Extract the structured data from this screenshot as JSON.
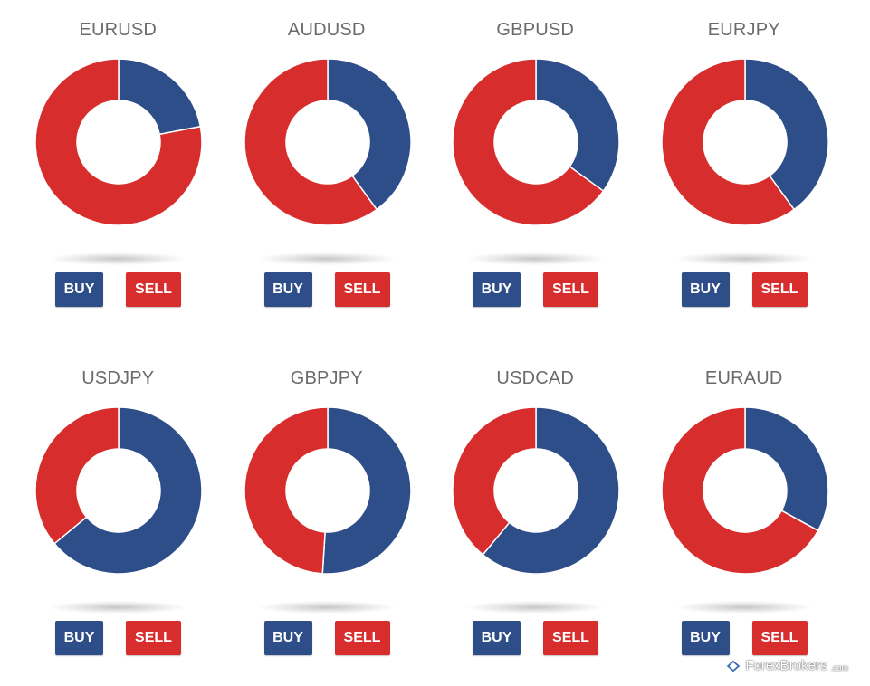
{
  "colors": {
    "buy": "#2e4e8a",
    "sell": "#d72d2d"
  },
  "buttons": {
    "buy": "BUY",
    "sell": "SELL"
  },
  "brand": {
    "name": "ForexBrokers",
    "suffix": ".com"
  },
  "chart_data": [
    {
      "type": "pie",
      "title": "EURUSD",
      "series": [
        {
          "values": [
            22,
            78
          ]
        }
      ]
    },
    {
      "type": "pie",
      "title": "AUDUSD",
      "series": [
        {
          "values": [
            40,
            60
          ]
        }
      ]
    },
    {
      "type": "pie",
      "title": "GBPUSD",
      "series": [
        {
          "values": [
            35,
            65
          ]
        }
      ]
    },
    {
      "type": "pie",
      "title": "EURJPY",
      "series": [
        {
          "values": [
            40,
            60
          ]
        }
      ]
    },
    {
      "type": "pie",
      "title": "USDJPY",
      "series": [
        {
          "values": [
            64,
            36
          ]
        }
      ]
    },
    {
      "type": "pie",
      "title": "GBPJPY",
      "series": [
        {
          "values": [
            51,
            49
          ]
        }
      ]
    },
    {
      "type": "pie",
      "title": "USDCAD",
      "series": [
        {
          "values": [
            61,
            39
          ]
        }
      ]
    },
    {
      "type": "pie",
      "title": "EURAUD",
      "series": [
        {
          "values": [
            33,
            67
          ]
        }
      ]
    }
  ]
}
